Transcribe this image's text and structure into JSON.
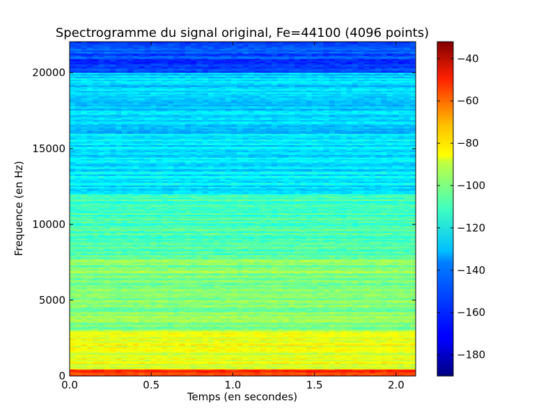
{
  "chart_data": {
    "type": "heatmap",
    "title": "Spectrogramme du signal original, Fe=44100 (4096 points)",
    "xlabel": "Temps (en secondes)",
    "ylabel": "Frequence (en Hz)",
    "xlim": [
      0.0,
      2.12
    ],
    "ylim": [
      0,
      22050
    ],
    "x_ticks": [
      0.0,
      0.5,
      1.0,
      1.5,
      2.0
    ],
    "x_tick_labels": [
      "0.0",
      "0.5",
      "1.0",
      "1.5",
      "2.0"
    ],
    "y_ticks": [
      0,
      5000,
      10000,
      15000,
      20000
    ],
    "y_tick_labels": [
      "0",
      "5000",
      "10000",
      "15000",
      "20000"
    ],
    "colormap": "jet",
    "colorbar": {
      "range": [
        -190,
        -32
      ],
      "ticks": [
        -40,
        -60,
        -80,
        -100,
        -120,
        -140,
        -160,
        -180
      ],
      "tick_labels": [
        "−40",
        "−60",
        "−80",
        "−100",
        "−120",
        "−140",
        "−160",
        "−180"
      ]
    },
    "approx_levels_db": [
      {
        "freq_range_hz": [
          0,
          500
        ],
        "level_db": -60
      },
      {
        "freq_range_hz": [
          500,
          3000
        ],
        "level_db": -95
      },
      {
        "freq_range_hz": [
          3000,
          8000
        ],
        "level_db": -110
      },
      {
        "freq_range_hz": [
          8000,
          12000
        ],
        "level_db": -120
      },
      {
        "freq_range_hz": [
          12000,
          16000
        ],
        "level_db": -135
      },
      {
        "freq_range_hz": [
          16000,
          20000
        ],
        "level_db": -138
      },
      {
        "freq_range_hz": [
          20000,
          22050
        ],
        "level_db": -158
      }
    ]
  }
}
